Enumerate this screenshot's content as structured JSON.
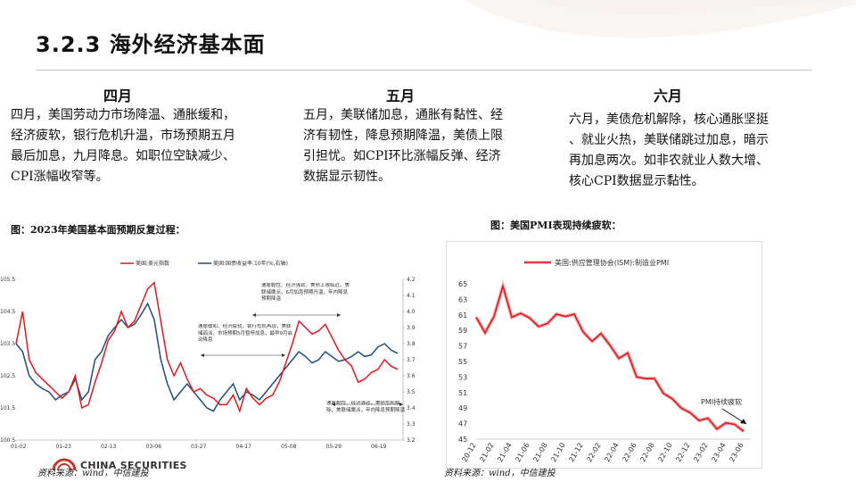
{
  "header": {
    "title": "3.2.3 海外经济基本面"
  },
  "months": [
    {
      "head": "四月",
      "text": "四月，美国劳动力市场降温、通胀缓和，\n经济疲软，银行危机升温，市场预期五月\n最后加息，九月降息。如职位空缺减少、\nCPI涨幅收窄等。"
    },
    {
      "head": "五月",
      "text": "五月，美联储加息，通胀有黏性、经\n济有韧性，降息预期降温，美债上限\n引担忧。如CPI环比涨幅反弹、经济\n数据显示韧性。"
    },
    {
      "head": "六月",
      "text": "六月，美债危机解除，核心通胀坚挺\n、就业火热，美联储跳过加息，暗示\n再加息两次。如非农就业人数大增、\n核心CPI数据显示黏性。"
    }
  ],
  "figure_left": {
    "caption": "图：2023年美国基本面预期反复过程：",
    "source": "资料来源：wind，中信建投"
  },
  "figure_right": {
    "caption": "图：美国PMI表现持续疲软：",
    "source": "资料来源：wind，中信建投"
  },
  "logo": {
    "text": "CHINA SECURITIES"
  },
  "colors": {
    "red": "#e0191f",
    "blue": "#1f4e79",
    "accent": "#c0392b"
  },
  "chart_data": [
    {
      "type": "line",
      "legend": [
        "美国:美元指数",
        "美国:国债收益率:10年(%,右轴)"
      ],
      "x_ticks": [
        "01-02",
        "01-23",
        "02-13",
        "03-06",
        "03-27",
        "04-17",
        "05-08",
        "05-29",
        "06-19"
      ],
      "y_left_ticks": [
        "100.5",
        "101.5",
        "102.5",
        "103.5",
        "104.5",
        "105.5"
      ],
      "y_right_ticks": [
        "3.2",
        "3.3",
        "3.4",
        "3.5",
        "3.6",
        "3.7",
        "3.8",
        "3.9",
        "4.0",
        "4.1",
        "4.2"
      ],
      "ylim_left": [
        100.5,
        105.5
      ],
      "ylim_right": [
        3.2,
        4.2
      ],
      "series": [
        {
          "name": "美国:美元指数",
          "values": [
            103.5,
            104.5,
            103.0,
            102.6,
            102.4,
            102.2,
            102.0,
            101.8,
            102.0,
            102.5,
            101.5,
            101.6,
            102.3,
            102.9,
            103.6,
            103.9,
            104.5,
            104.0,
            104.2,
            104.7,
            105.2,
            105.4,
            104.2,
            103.0,
            102.5,
            102.9,
            102.4,
            102.0,
            102.1,
            101.9,
            101.8,
            101.6,
            101.6,
            101.9,
            101.4,
            102.1,
            101.8,
            101.6,
            101.8,
            101.9,
            102.3,
            102.9,
            103.5,
            104.2,
            104.0,
            103.8,
            103.9,
            104.1,
            103.7,
            103.3,
            103.0,
            102.8,
            102.3,
            102.4,
            102.6,
            102.7,
            103.0,
            102.8,
            102.7
          ]
        },
        {
          "name": "美国:国债收益率:10年(%,右轴)",
          "values": [
            3.8,
            3.75,
            3.6,
            3.55,
            3.52,
            3.5,
            3.45,
            3.48,
            3.5,
            3.58,
            3.45,
            3.5,
            3.7,
            3.75,
            3.85,
            3.9,
            3.95,
            3.9,
            3.92,
            3.98,
            4.05,
            3.95,
            3.7,
            3.55,
            3.45,
            3.5,
            3.55,
            3.5,
            3.45,
            3.4,
            3.38,
            3.45,
            3.5,
            3.55,
            3.45,
            3.5,
            3.48,
            3.45,
            3.5,
            3.55,
            3.6,
            3.65,
            3.7,
            3.75,
            3.72,
            3.68,
            3.7,
            3.75,
            3.72,
            3.69,
            3.7,
            3.72,
            3.75,
            3.72,
            3.73,
            3.78,
            3.8,
            3.76,
            3.74
          ]
        }
      ],
      "annotations": [
        "通胀黏性、经济强劲，美债上限临近，美联储鹰派，6月加息预期升温，年内降息预期降温",
        "通胀缓和、经济疲软，银行危机再现，美联储鸽派，市场预期5月暂停加息，最早9月启动降息",
        "通胀黏性、经济强劲，美债危机解除，美联储鹰派，年内降息预期降温"
      ]
    },
    {
      "type": "line",
      "legend": [
        "美国:供应管理协会(ISM):制造业PMI"
      ],
      "x_ticks": [
        "20-12",
        "21-02",
        "21-04",
        "21-06",
        "21-08",
        "21-10",
        "21-12",
        "22-02",
        "22-04",
        "22-06",
        "22-08",
        "22-10",
        "22-12",
        "23-02",
        "23-04",
        "23-06"
      ],
      "y_ticks": [
        "45",
        "47",
        "49",
        "51",
        "53",
        "55",
        "57",
        "59",
        "61",
        "63",
        "65"
      ],
      "ylim": [
        45,
        65
      ],
      "x": [
        "20-12",
        "21-01",
        "21-02",
        "21-03",
        "21-04",
        "21-05",
        "21-06",
        "21-07",
        "21-08",
        "21-09",
        "21-10",
        "21-11",
        "21-12",
        "22-01",
        "22-02",
        "22-03",
        "22-04",
        "22-05",
        "22-06",
        "22-07",
        "22-08",
        "22-09",
        "22-10",
        "22-11",
        "22-12",
        "23-01",
        "23-02",
        "23-03",
        "23-04",
        "23-05",
        "23-06"
      ],
      "values": [
        60.7,
        58.7,
        60.8,
        64.7,
        60.7,
        61.2,
        60.6,
        59.5,
        59.9,
        61.1,
        60.8,
        61.1,
        58.8,
        57.6,
        58.6,
        57.1,
        55.4,
        56.1,
        53.0,
        52.8,
        52.8,
        50.9,
        50.2,
        49.0,
        48.4,
        47.4,
        47.7,
        46.3,
        47.1,
        46.9,
        46.0
      ],
      "annotation": "PMI持续疲软"
    }
  ]
}
